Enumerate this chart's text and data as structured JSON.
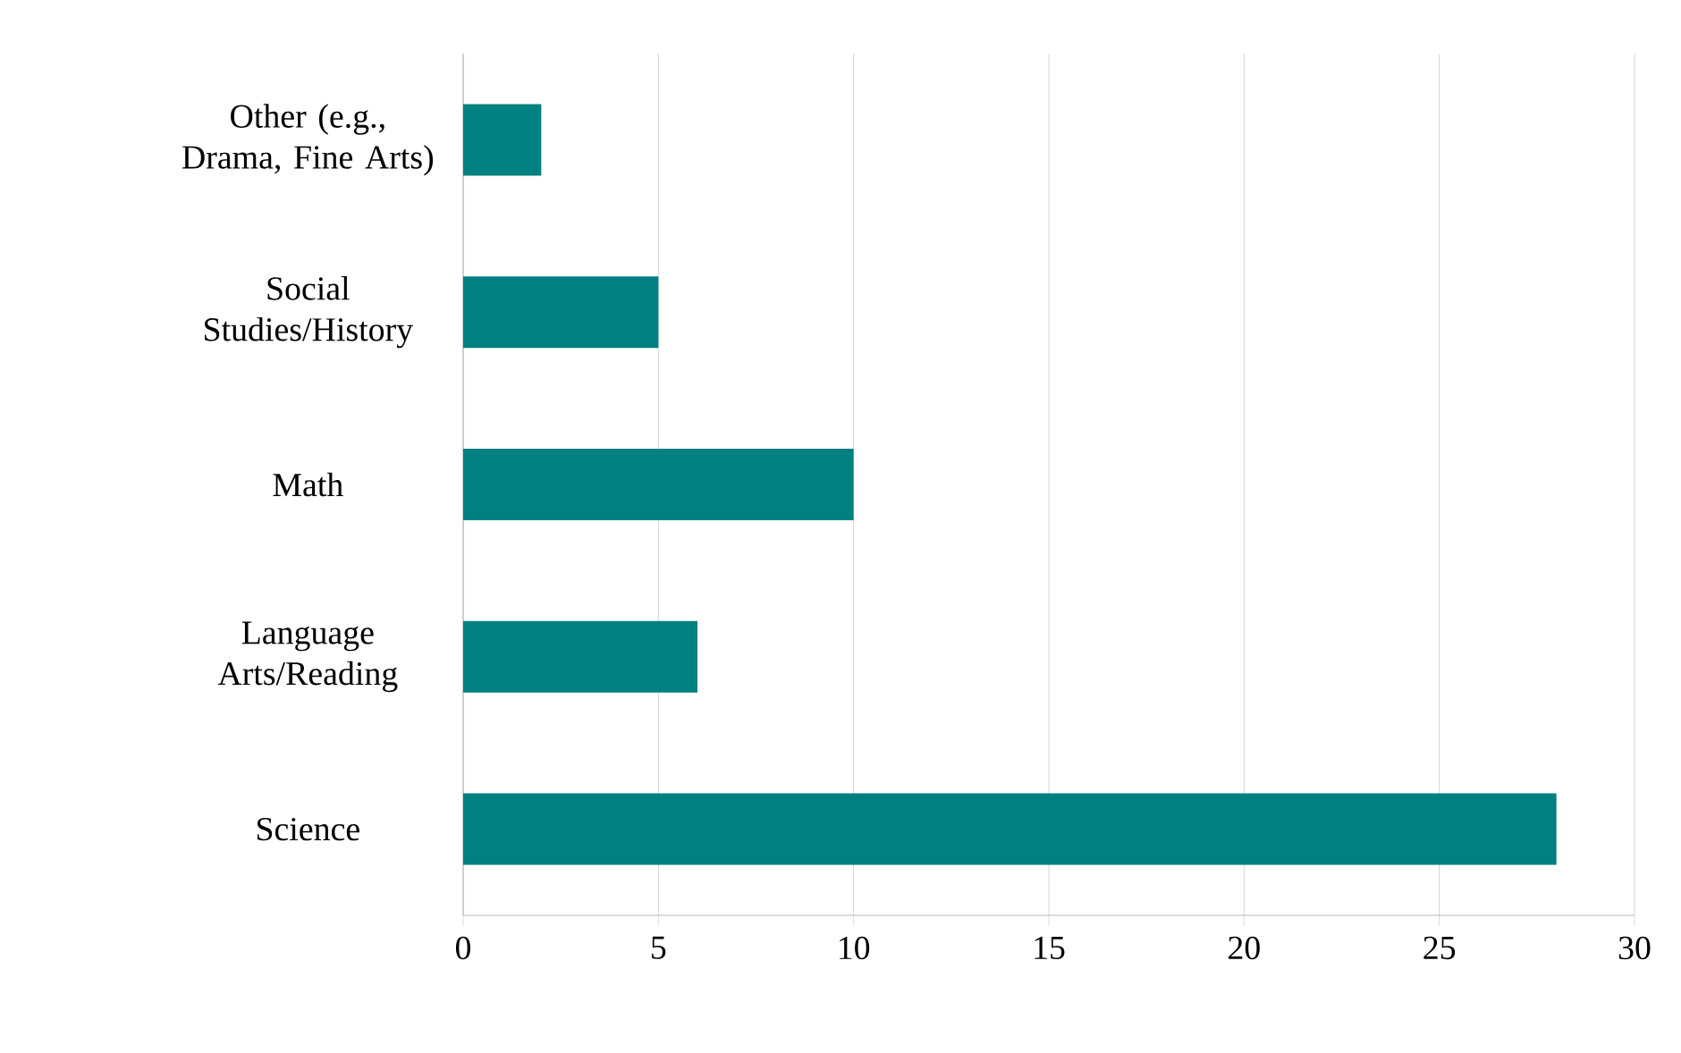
{
  "chart_data": {
    "type": "bar",
    "orientation": "horizontal",
    "categories": [
      "Other (e.g., Drama, Fine Arts)",
      "Social Studies/History",
      "Math",
      "Language Arts/Reading",
      "Science"
    ],
    "values": [
      2,
      5,
      10,
      6,
      28
    ],
    "color": "#008080",
    "xlim": [
      0,
      30
    ],
    "xticks": [
      0,
      5,
      10,
      15,
      20,
      25,
      30
    ],
    "grid": "x"
  }
}
